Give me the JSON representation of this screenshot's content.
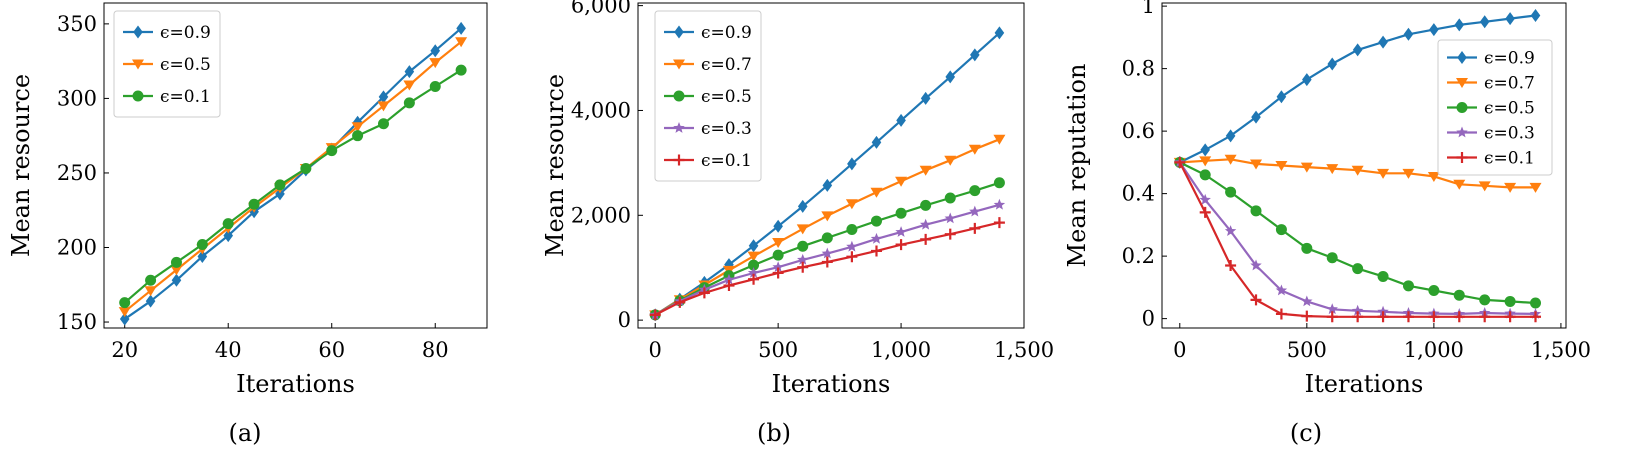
{
  "colors": {
    "blue": "#1f77b4",
    "orange": "#ff7f0e",
    "green": "#2ca02c",
    "purple": "#9467bd",
    "red": "#d62728"
  },
  "chart_data": [
    {
      "type": "line",
      "caption": "(a)",
      "xlabel": "Iterations",
      "ylabel": "Mean resource",
      "xlim": [
        16,
        90
      ],
      "ylim": [
        146,
        364
      ],
      "xticks": [
        20,
        40,
        60,
        80
      ],
      "xtick_labels": [
        "20",
        "40",
        "60",
        "80"
      ],
      "yticks": [
        150,
        200,
        250,
        300,
        350
      ],
      "ytick_labels": [
        "150",
        "200",
        "250",
        "300",
        "350"
      ],
      "legend_position": "top-left",
      "x": [
        20,
        25,
        30,
        35,
        40,
        45,
        50,
        55,
        60,
        65,
        70,
        75,
        80,
        85
      ],
      "series": [
        {
          "name": "ϵ=0.9",
          "color": "#1f77b4",
          "marker": "diamond",
          "values": [
            152,
            164,
            178,
            194,
            208,
            224,
            236,
            252,
            266,
            284,
            301,
            318,
            332,
            347
          ]
        },
        {
          "name": "ϵ=0.5",
          "color": "#ff7f0e",
          "marker": "triangle-down",
          "values": [
            157,
            171,
            185,
            199,
            213,
            227,
            240,
            253,
            267,
            281,
            295,
            309,
            324,
            338
          ]
        },
        {
          "name": "ϵ=0.1",
          "color": "#2ca02c",
          "marker": "circle",
          "values": [
            163,
            178,
            190,
            202,
            216,
            229,
            242,
            253,
            265,
            275,
            283,
            297,
            308,
            319
          ]
        }
      ]
    },
    {
      "type": "line",
      "caption": "(b)",
      "xlabel": "Iterations",
      "ylabel": "Mean resource",
      "xlim": [
        -70,
        1500
      ],
      "ylim": [
        -150,
        6050
      ],
      "xticks": [
        0,
        500,
        1000,
        1500
      ],
      "xtick_labels": [
        "0",
        "500",
        "1,000",
        "1,500"
      ],
      "yticks": [
        0,
        2000,
        4000,
        6000
      ],
      "ytick_labels": [
        "0",
        "2,000",
        "4,000",
        "6,000"
      ],
      "legend_position": "top-left",
      "x": [
        0,
        100,
        200,
        300,
        400,
        500,
        600,
        700,
        800,
        900,
        1000,
        1100,
        1200,
        1300,
        1400
      ],
      "series": [
        {
          "name": "ϵ=0.9",
          "color": "#1f77b4",
          "marker": "diamond",
          "values": [
            100,
            400,
            720,
            1060,
            1420,
            1790,
            2170,
            2570,
            2980,
            3390,
            3810,
            4230,
            4640,
            5060,
            5480
          ]
        },
        {
          "name": "ϵ=0.7",
          "color": "#ff7f0e",
          "marker": "triangle-down",
          "values": [
            100,
            390,
            670,
            950,
            1220,
            1480,
            1740,
            1990,
            2220,
            2440,
            2650,
            2860,
            3050,
            3260,
            3450
          ]
        },
        {
          "name": "ϵ=0.5",
          "color": "#2ca02c",
          "marker": "circle",
          "values": [
            100,
            370,
            620,
            850,
            1050,
            1240,
            1410,
            1570,
            1730,
            1890,
            2040,
            2190,
            2330,
            2470,
            2620
          ]
        },
        {
          "name": "ϵ=0.3",
          "color": "#9467bd",
          "marker": "star",
          "values": [
            100,
            360,
            580,
            770,
            900,
            1010,
            1150,
            1270,
            1400,
            1550,
            1680,
            1820,
            1940,
            2070,
            2200
          ]
        },
        {
          "name": "ϵ=0.1",
          "color": "#d62728",
          "marker": "plus",
          "values": [
            100,
            340,
            520,
            660,
            780,
            900,
            1010,
            1110,
            1210,
            1320,
            1440,
            1540,
            1640,
            1750,
            1860
          ]
        }
      ]
    },
    {
      "type": "line",
      "caption": "(c)",
      "xlabel": "Iterations",
      "ylabel": "Mean reputation",
      "xlim": [
        -70,
        1520
      ],
      "ylim": [
        -0.03,
        1.01
      ],
      "xticks": [
        0,
        500,
        1000,
        1500
      ],
      "xtick_labels": [
        "0",
        "500",
        "1,000",
        "1,500"
      ],
      "yticks": [
        0,
        0.2,
        0.4,
        0.6,
        0.8,
        1
      ],
      "ytick_labels": [
        "0",
        "0.2",
        "0.4",
        "0.6",
        "0.8",
        "1"
      ],
      "legend_position": "upper-right",
      "x": [
        0,
        100,
        200,
        300,
        400,
        500,
        600,
        700,
        800,
        900,
        1000,
        1100,
        1200,
        1300,
        1400
      ],
      "series": [
        {
          "name": "ϵ=0.9",
          "color": "#1f77b4",
          "marker": "diamond",
          "values": [
            0.5,
            0.54,
            0.585,
            0.645,
            0.71,
            0.765,
            0.815,
            0.86,
            0.885,
            0.91,
            0.925,
            0.94,
            0.95,
            0.96,
            0.97
          ]
        },
        {
          "name": "ϵ=0.7",
          "color": "#ff7f0e",
          "marker": "triangle-down",
          "values": [
            0.5,
            0.505,
            0.51,
            0.495,
            0.49,
            0.485,
            0.48,
            0.475,
            0.465,
            0.465,
            0.455,
            0.43,
            0.425,
            0.42,
            0.42
          ]
        },
        {
          "name": "ϵ=0.5",
          "color": "#2ca02c",
          "marker": "circle",
          "values": [
            0.5,
            0.46,
            0.405,
            0.345,
            0.285,
            0.225,
            0.195,
            0.16,
            0.135,
            0.105,
            0.09,
            0.075,
            0.06,
            0.055,
            0.05
          ]
        },
        {
          "name": "ϵ=0.3",
          "color": "#9467bd",
          "marker": "star",
          "values": [
            0.5,
            0.38,
            0.28,
            0.17,
            0.09,
            0.055,
            0.03,
            0.025,
            0.022,
            0.018,
            0.016,
            0.015,
            0.018,
            0.016,
            0.015
          ]
        },
        {
          "name": "ϵ=0.1",
          "color": "#d62728",
          "marker": "plus",
          "values": [
            0.5,
            0.34,
            0.17,
            0.06,
            0.015,
            0.008,
            0.006,
            0.006,
            0.006,
            0.006,
            0.006,
            0.006,
            0.006,
            0.006,
            0.006
          ]
        }
      ]
    }
  ]
}
